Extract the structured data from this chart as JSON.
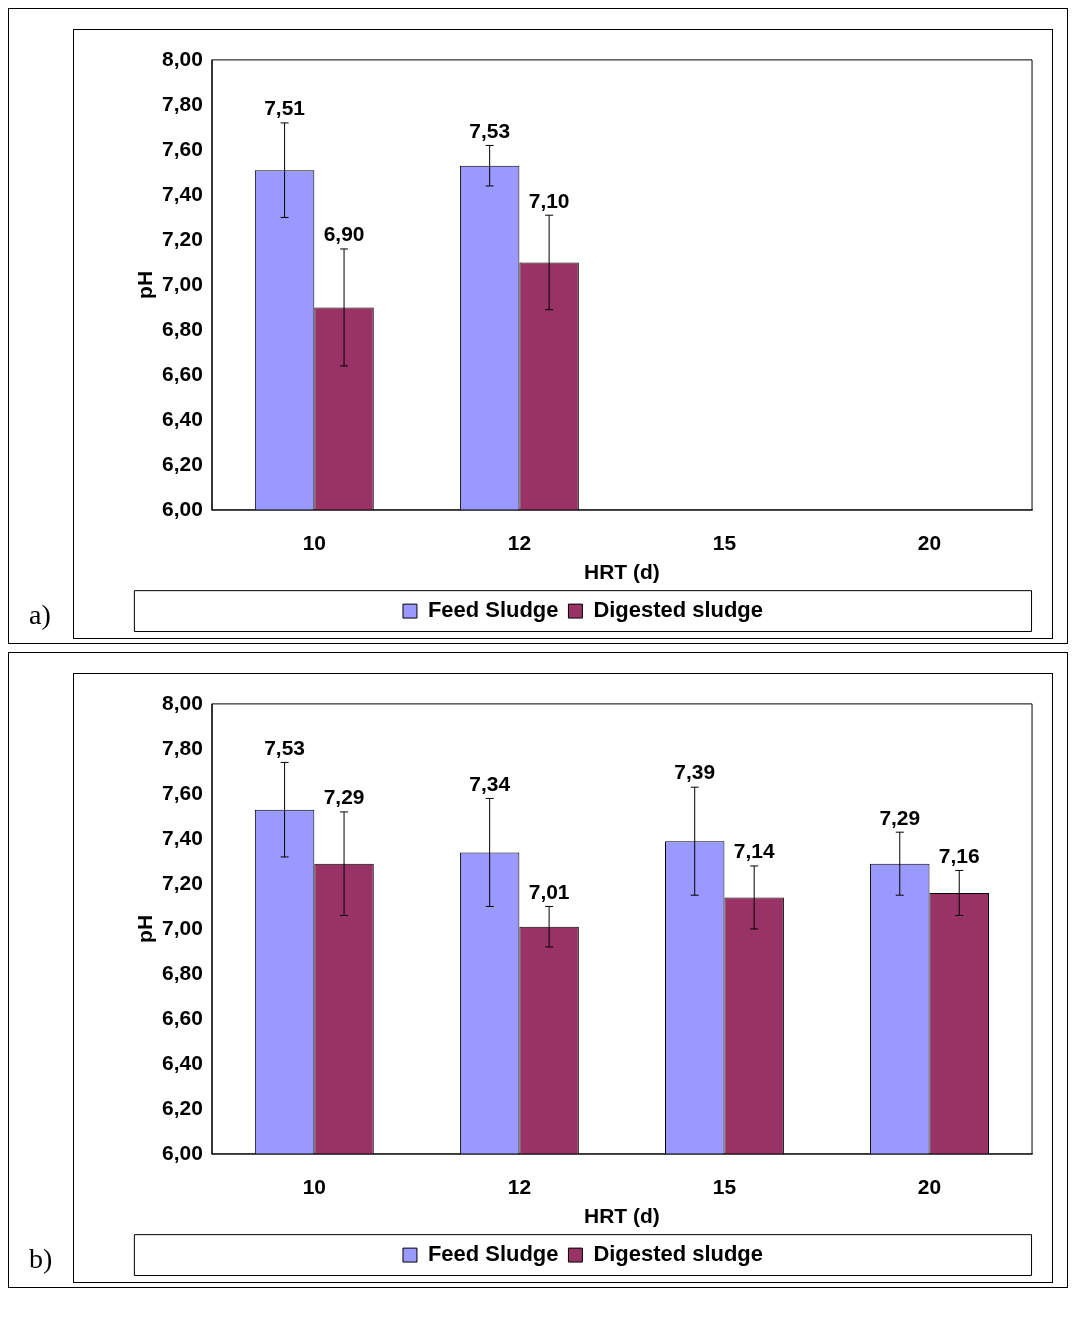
{
  "chart_data": [
    {
      "type": "bar",
      "xlabel": "HRT (d)",
      "ylabel": "pH",
      "categories": [
        "10",
        "12",
        "15",
        "20"
      ],
      "legend": "bottom",
      "ylim": [
        6,
        8
      ],
      "yticks": [
        {
          "value": 6,
          "label": "6,00"
        },
        {
          "value": 6.2,
          "label": "6,20"
        },
        {
          "value": 6.4,
          "label": "6,40"
        },
        {
          "value": 6.6,
          "label": "6,60"
        },
        {
          "value": 6.8,
          "label": "6,80"
        },
        {
          "value": 7,
          "label": "7,00"
        },
        {
          "value": 7.2,
          "label": "7,20"
        },
        {
          "value": 7.4,
          "label": "7,40"
        },
        {
          "value": 7.6,
          "label": "7,60"
        },
        {
          "value": 7.8,
          "label": "7,80"
        },
        {
          "value": 8,
          "label": "8,00"
        }
      ],
      "annotations": [
        "a)"
      ],
      "series": [
        {
          "name": "Feed Sludge",
          "color": "#9999ff",
          "values": [
            7.51,
            7.53,
            null,
            null
          ],
          "errors": [
            0.21,
            0.09,
            null,
            null
          ],
          "value_labels": [
            "7,51",
            "7,53",
            null,
            null
          ]
        },
        {
          "name": "Digested sludge",
          "color": "#993366",
          "values": [
            6.9,
            7.1,
            null,
            null
          ],
          "errors": [
            0.26,
            0.21,
            null,
            null
          ],
          "value_labels": [
            "6,90",
            "7,10",
            null,
            null
          ]
        }
      ]
    },
    {
      "type": "bar",
      "xlabel": "HRT (d)",
      "ylabel": "pH",
      "categories": [
        "10",
        "12",
        "15",
        "20"
      ],
      "legend": "bottom",
      "ylim": [
        6,
        8
      ],
      "yticks": [
        {
          "value": 6,
          "label": "6,00"
        },
        {
          "value": 6.2,
          "label": "6,20"
        },
        {
          "value": 6.4,
          "label": "6,40"
        },
        {
          "value": 6.6,
          "label": "6,60"
        },
        {
          "value": 6.8,
          "label": "6,80"
        },
        {
          "value": 7,
          "label": "7,00"
        },
        {
          "value": 7.2,
          "label": "7,20"
        },
        {
          "value": 7.4,
          "label": "7,40"
        },
        {
          "value": 7.6,
          "label": "7,60"
        },
        {
          "value": 7.8,
          "label": "7,80"
        },
        {
          "value": 8,
          "label": "8,00"
        }
      ],
      "annotations": [
        "b)"
      ],
      "series": [
        {
          "name": "Feed Sludge",
          "color": "#9999ff",
          "values": [
            7.53,
            7.34,
            7.39,
            7.29
          ],
          "errors": [
            0.21,
            0.24,
            0.24,
            0.14
          ],
          "value_labels": [
            "7,53",
            "7,34",
            "7,39",
            "7,29"
          ]
        },
        {
          "name": "Digested sludge",
          "color": "#993366",
          "values": [
            7.29,
            7.01,
            7.14,
            7.16
          ],
          "errors": [
            0.23,
            0.09,
            0.14,
            0.1
          ],
          "value_labels": [
            "7,29",
            "7,01",
            "7,14",
            "7,16"
          ]
        }
      ]
    }
  ]
}
